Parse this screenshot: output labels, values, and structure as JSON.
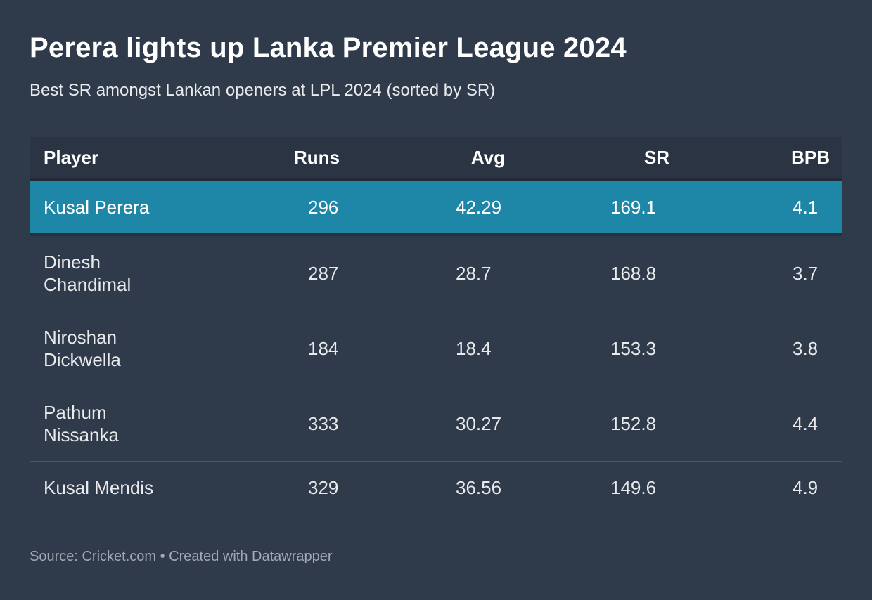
{
  "page": {
    "title": "Perera lights up Lanka Premier League 2024",
    "subtitle": "Best SR amongst Lankan openers at LPL 2024 (sorted by SR)"
  },
  "chart_data": {
    "type": "table",
    "title": "Perera lights up Lanka Premier League 2024",
    "subtitle": "Best SR amongst Lankan openers at LPL 2024 (sorted by SR)",
    "columns": [
      "Player",
      "Runs",
      "Avg",
      "SR",
      "BPB"
    ],
    "rows": [
      {
        "player": "Kusal Perera",
        "runs": "296",
        "avg": "42.29",
        "sr": "169.1",
        "bpb": "4.1",
        "highlighted": true
      },
      {
        "player": "Dinesh Chandimal",
        "runs": "287",
        "avg": "28.7",
        "sr": "168.8",
        "bpb": "3.7",
        "highlighted": false
      },
      {
        "player": "Niroshan Dickwella",
        "runs": "184",
        "avg": "18.4",
        "sr": "153.3",
        "bpb": "3.8",
        "highlighted": false
      },
      {
        "player": "Pathum Nissanka",
        "runs": "333",
        "avg": "30.27",
        "sr": "152.8",
        "bpb": "4.4",
        "highlighted": false
      },
      {
        "player": "Kusal Mendis",
        "runs": "329",
        "avg": "36.56",
        "sr": "149.6",
        "bpb": "4.9",
        "highlighted": false
      }
    ],
    "legend_position": "none",
    "grid": "row-dividers"
  },
  "colors": {
    "background": "#2F3A4B",
    "header_band": "#2A3443",
    "highlight_row": "#1E86A7",
    "row_divider": "#4A5463",
    "text": "#E8EAEC",
    "footer_text": "#A1A9B3"
  },
  "footer": {
    "text": "Source: Cricket.com • Created with Datawrapper"
  }
}
